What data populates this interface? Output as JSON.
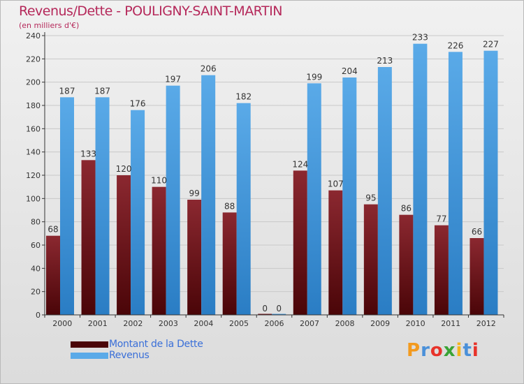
{
  "colors": {
    "title": "#b5285a",
    "legend_text": "#3a6fd8",
    "debt_top": "#8b2830",
    "debt_bottom": "#4a0508",
    "rev_top": "#5aaae8",
    "rev_bottom": "#2a7dc4",
    "grid": "#c8c8c8",
    "axis": "#333333"
  },
  "chart_data": {
    "type": "bar",
    "title": "Revenus/Dette - POULIGNY-SAINT-MARTIN",
    "subtitle": "(en milliers d'€)",
    "categories": [
      "2000",
      "2001",
      "2002",
      "2003",
      "2004",
      "2005",
      "2006",
      "2007",
      "2008",
      "2009",
      "2010",
      "2011",
      "2012"
    ],
    "series": [
      {
        "name": "Montant de la Dette",
        "values": [
          68,
          133,
          120,
          110,
          99,
          88,
          0,
          124,
          107,
          95,
          86,
          77,
          66
        ]
      },
      {
        "name": "Revenus",
        "values": [
          187,
          187,
          176,
          197,
          206,
          182,
          0,
          199,
          204,
          213,
          233,
          226,
          227
        ]
      }
    ],
    "ylim": [
      0,
      240
    ],
    "yticks": [
      0,
      20,
      40,
      60,
      80,
      100,
      120,
      140,
      160,
      180,
      200,
      220,
      240
    ],
    "grid": true,
    "legend": "bottom-left"
  },
  "legend": {
    "debt_label": "Montant de la Dette",
    "revenue_label": "Revenus"
  },
  "logo": {
    "letters": [
      "P",
      "r",
      "o",
      "x",
      "i",
      "t",
      "i"
    ],
    "letter_colors": [
      "#f39a1e",
      "#4a90d9",
      "#e8332a",
      "#3aa335",
      "#f3b51e",
      "#4a90d9",
      "#e8332a"
    ]
  }
}
